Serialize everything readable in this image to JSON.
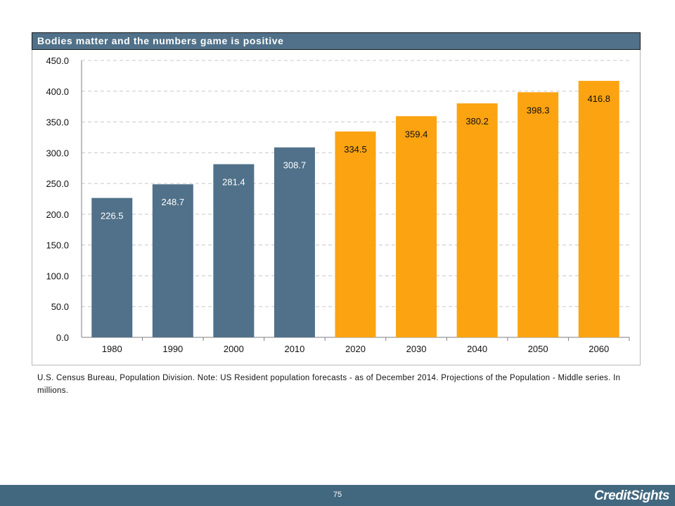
{
  "colors": {
    "historic": "#507189",
    "projected": "#fca311",
    "title_bg": "#507189",
    "footer_bg": "#41687f"
  },
  "chart_data": {
    "type": "bar",
    "title": "Bodies matter and the numbers game is positive",
    "categories": [
      "1980",
      "1990",
      "2000",
      "2010",
      "2020",
      "2030",
      "2040",
      "2050",
      "2060"
    ],
    "values": [
      226.5,
      248.7,
      281.4,
      308.7,
      334.5,
      359.4,
      380.2,
      398.3,
      416.8
    ],
    "value_labels": [
      "226.5",
      "248.7",
      "281.4",
      "308.7",
      "334.5",
      "359.4",
      "380.2",
      "398.3",
      "416.8"
    ],
    "bar_colors": [
      "#507189",
      "#507189",
      "#507189",
      "#507189",
      "#fca311",
      "#fca311",
      "#fca311",
      "#fca311",
      "#fca311"
    ],
    "ylim": [
      0,
      450
    ],
    "yticks": [
      "0.0",
      "50.0",
      "100.0",
      "150.0",
      "200.0",
      "250.0",
      "300.0",
      "350.0",
      "400.0",
      "450.0"
    ],
    "xlabel": "",
    "ylabel": "",
    "grid": true
  },
  "note": "U.S. Census Bureau, Population Division. Note: US Resident population forecasts - as of December 2014. Projections of the Population - Middle series. In millions.",
  "footer": {
    "page_number": "75",
    "logo": "CreditSights"
  }
}
